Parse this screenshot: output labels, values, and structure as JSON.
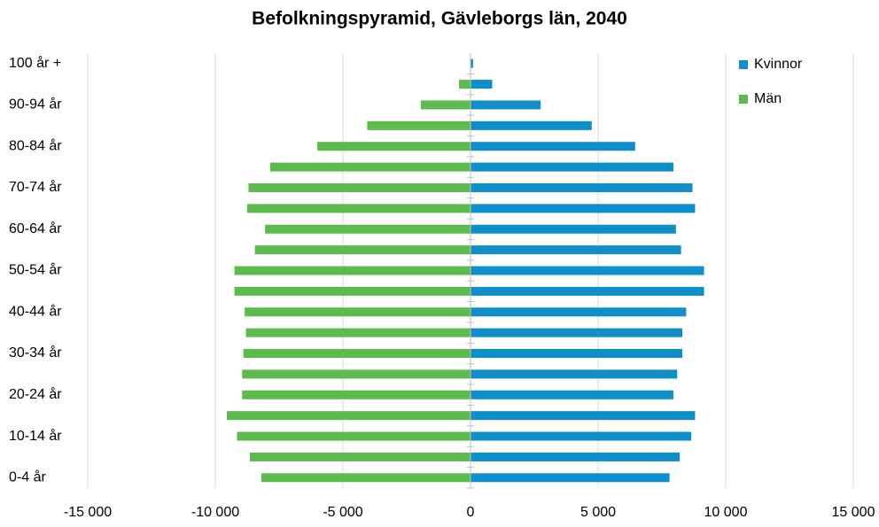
{
  "chart_data": {
    "type": "bar",
    "orientation": "horizontal",
    "title": "Befolkningspyramid, Gävleborgs län, 2040",
    "categories": [
      "0-4 år",
      null,
      "10-14 år",
      null,
      "20-24 år",
      null,
      "30-34 år",
      null,
      "40-44 år",
      null,
      "50-54 år",
      null,
      "60-64 år",
      null,
      "70-74 år",
      null,
      "80-84 år",
      null,
      "90-94 år",
      null,
      "100 år +"
    ],
    "series": [
      {
        "name": "Kvinnor",
        "color": "#0f8fc9",
        "values": [
          7800,
          8200,
          8650,
          8800,
          7950,
          8100,
          8300,
          8300,
          8450,
          9150,
          9150,
          8250,
          8050,
          8800,
          8700,
          7950,
          6450,
          4750,
          2750,
          850,
          100
        ]
      },
      {
        "name": "Män",
        "color": "#5cbb4c",
        "values": [
          -8200,
          -8650,
          -9150,
          -9550,
          -8950,
          -8950,
          -8900,
          -8800,
          -8850,
          -9250,
          -9250,
          -8450,
          -8050,
          -8750,
          -8700,
          -7850,
          -6000,
          -4050,
          -1950,
          -450,
          0
        ]
      }
    ],
    "xlim": [
      -15000,
      15000
    ],
    "xticks": [
      {
        "value": -15000,
        "label": "-15 000"
      },
      {
        "value": -10000,
        "label": "-10 000"
      },
      {
        "value": -5000,
        "label": "-5 000"
      },
      0,
      {
        "value": 5000,
        "label": "5 000"
      },
      {
        "value": 10000,
        "label": "10 000"
      },
      {
        "value": 15000,
        "label": "15 000"
      }
    ],
    "grid": true,
    "legend": "top-right"
  }
}
